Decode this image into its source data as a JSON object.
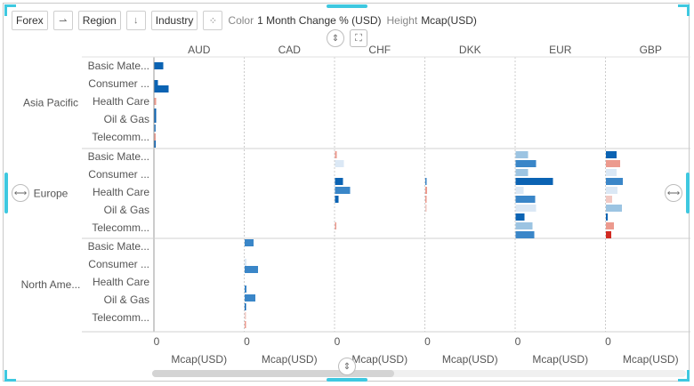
{
  "toolbar": {
    "category_chips": [
      "Forex",
      "Region",
      "Industry"
    ],
    "color_label": "Color",
    "color_value": "1 Month Change % (USD)",
    "height_label": "Height",
    "height_value": "Mcap(USD)"
  },
  "colors": {
    "accent": "#3ec8e0",
    "strong_blue": "#0b63b3",
    "mid_blue": "#3a86c8",
    "light_blue": "#9cc4e2",
    "pale_blue": "#dbe8f5",
    "pale_red": "#f2c9c3",
    "light_red": "#ec9a8e",
    "strong_red": "#d12a22"
  },
  "chart_data": {
    "type": "bar",
    "orientation": "horizontal",
    "columns": [
      "AUD",
      "CAD",
      "CHF",
      "DKK",
      "EUR",
      "GBP"
    ],
    "row_groups": [
      {
        "label": "Asia Pacific",
        "categories": [
          "Basic Mate...",
          "Consumer ...",
          "Health Care",
          "Oil & Gas",
          "Telecomm..."
        ]
      },
      {
        "label": "Europe",
        "categories": [
          "Basic Mate...",
          "Consumer ...",
          "Health Care",
          "Oil & Gas",
          "Telecomm..."
        ]
      },
      {
        "label": "North Ame...",
        "categories": [
          "Basic Mate...",
          "Consumer ...",
          "Health Care",
          "Oil & Gas",
          "Telecomm..."
        ]
      }
    ],
    "x_tick_label": "0",
    "x_axis_label": "Mcap(USD)",
    "x_range": [
      0,
      100
    ],
    "bars": [
      {
        "col": 0,
        "group": 0,
        "pos": 0,
        "value": 10,
        "color": "strong_blue"
      },
      {
        "col": 0,
        "group": 0,
        "pos": 1,
        "value": 4,
        "color": "strong_blue"
      },
      {
        "col": 0,
        "group": 0,
        "pos": 1.3,
        "value": 16,
        "color": "strong_blue"
      },
      {
        "col": 0,
        "group": 0,
        "pos": 2,
        "value": 2,
        "color": "light_red"
      },
      {
        "col": 0,
        "group": 0,
        "pos": 2.6,
        "value": 2,
        "color": "strong_blue"
      },
      {
        "col": 0,
        "group": 0,
        "pos": 3,
        "value": 2,
        "color": "strong_blue"
      },
      {
        "col": 0,
        "group": 0,
        "pos": 3.5,
        "value": 1.5,
        "color": "mid_blue"
      },
      {
        "col": 0,
        "group": 0,
        "pos": 4,
        "value": 1.5,
        "color": "light_red"
      },
      {
        "col": 0,
        "group": 0,
        "pos": 4.4,
        "value": 1.5,
        "color": "strong_blue"
      },
      {
        "col": 1,
        "group": 2,
        "pos": -0.2,
        "value": 10,
        "color": "mid_blue"
      },
      {
        "col": 1,
        "group": 2,
        "pos": 0.9,
        "value": 2,
        "color": "pale_blue"
      },
      {
        "col": 1,
        "group": 2,
        "pos": 1.3,
        "value": 15,
        "color": "mid_blue"
      },
      {
        "col": 1,
        "group": 2,
        "pos": 2.4,
        "value": 2,
        "color": "mid_blue"
      },
      {
        "col": 1,
        "group": 2,
        "pos": 2.9,
        "value": 12,
        "color": "mid_blue"
      },
      {
        "col": 1,
        "group": 2,
        "pos": 3.4,
        "value": 1.5,
        "color": "strong_blue"
      },
      {
        "col": 1,
        "group": 2,
        "pos": 3.9,
        "value": 1.5,
        "color": "pale_red"
      },
      {
        "col": 1,
        "group": 2,
        "pos": 4.4,
        "value": 1.5,
        "color": "light_red"
      },
      {
        "col": 2,
        "group": 1,
        "pos": -0.1,
        "value": 2,
        "color": "light_red"
      },
      {
        "col": 2,
        "group": 1,
        "pos": 0.4,
        "value": 10,
        "color": "pale_blue"
      },
      {
        "col": 2,
        "group": 1,
        "pos": 1.4,
        "value": 9,
        "color": "strong_blue"
      },
      {
        "col": 2,
        "group": 1,
        "pos": 1.9,
        "value": 17,
        "color": "mid_blue"
      },
      {
        "col": 2,
        "group": 1,
        "pos": 2.4,
        "value": 4,
        "color": "strong_blue"
      },
      {
        "col": 2,
        "group": 1,
        "pos": 3.9,
        "value": 1.5,
        "color": "light_red"
      },
      {
        "col": 3,
        "group": 1,
        "pos": 1.4,
        "value": 1.5,
        "color": "mid_blue"
      },
      {
        "col": 3,
        "group": 1,
        "pos": 1.9,
        "value": 2,
        "color": "light_red"
      },
      {
        "col": 3,
        "group": 1,
        "pos": 2.4,
        "value": 1.5,
        "color": "light_red"
      },
      {
        "col": 3,
        "group": 1,
        "pos": 2.9,
        "value": 1.5,
        "color": "pale_red"
      },
      {
        "col": 4,
        "group": 1,
        "pos": -0.1,
        "value": 14,
        "color": "light_blue"
      },
      {
        "col": 4,
        "group": 1,
        "pos": 0.4,
        "value": 23,
        "color": "mid_blue"
      },
      {
        "col": 4,
        "group": 1,
        "pos": 0.9,
        "value": 14,
        "color": "light_blue"
      },
      {
        "col": 4,
        "group": 1,
        "pos": 1.4,
        "value": 42,
        "color": "strong_blue"
      },
      {
        "col": 4,
        "group": 1,
        "pos": 1.9,
        "value": 9,
        "color": "pale_blue"
      },
      {
        "col": 4,
        "group": 1,
        "pos": 2.4,
        "value": 22,
        "color": "mid_blue"
      },
      {
        "col": 4,
        "group": 1,
        "pos": 2.9,
        "value": 23,
        "color": "pale_blue"
      },
      {
        "col": 4,
        "group": 1,
        "pos": 3.4,
        "value": 10,
        "color": "strong_blue"
      },
      {
        "col": 4,
        "group": 1,
        "pos": 3.9,
        "value": 19,
        "color": "light_blue"
      },
      {
        "col": 4,
        "group": 1,
        "pos": 4.4,
        "value": 21,
        "color": "mid_blue"
      },
      {
        "col": 5,
        "group": 1,
        "pos": -0.1,
        "value": 12,
        "color": "strong_blue"
      },
      {
        "col": 5,
        "group": 1,
        "pos": 0.4,
        "value": 16,
        "color": "light_red"
      },
      {
        "col": 5,
        "group": 1,
        "pos": 0.9,
        "value": 12,
        "color": "pale_blue"
      },
      {
        "col": 5,
        "group": 1,
        "pos": 1.4,
        "value": 19,
        "color": "mid_blue"
      },
      {
        "col": 5,
        "group": 1,
        "pos": 1.9,
        "value": 13,
        "color": "pale_blue"
      },
      {
        "col": 5,
        "group": 1,
        "pos": 2.4,
        "value": 7,
        "color": "pale_red"
      },
      {
        "col": 5,
        "group": 1,
        "pos": 2.9,
        "value": 18,
        "color": "light_blue"
      },
      {
        "col": 5,
        "group": 1,
        "pos": 3.4,
        "value": 2,
        "color": "strong_blue"
      },
      {
        "col": 5,
        "group": 1,
        "pos": 3.9,
        "value": 9,
        "color": "light_red"
      },
      {
        "col": 5,
        "group": 1,
        "pos": 4.4,
        "value": 6,
        "color": "strong_red"
      }
    ]
  }
}
